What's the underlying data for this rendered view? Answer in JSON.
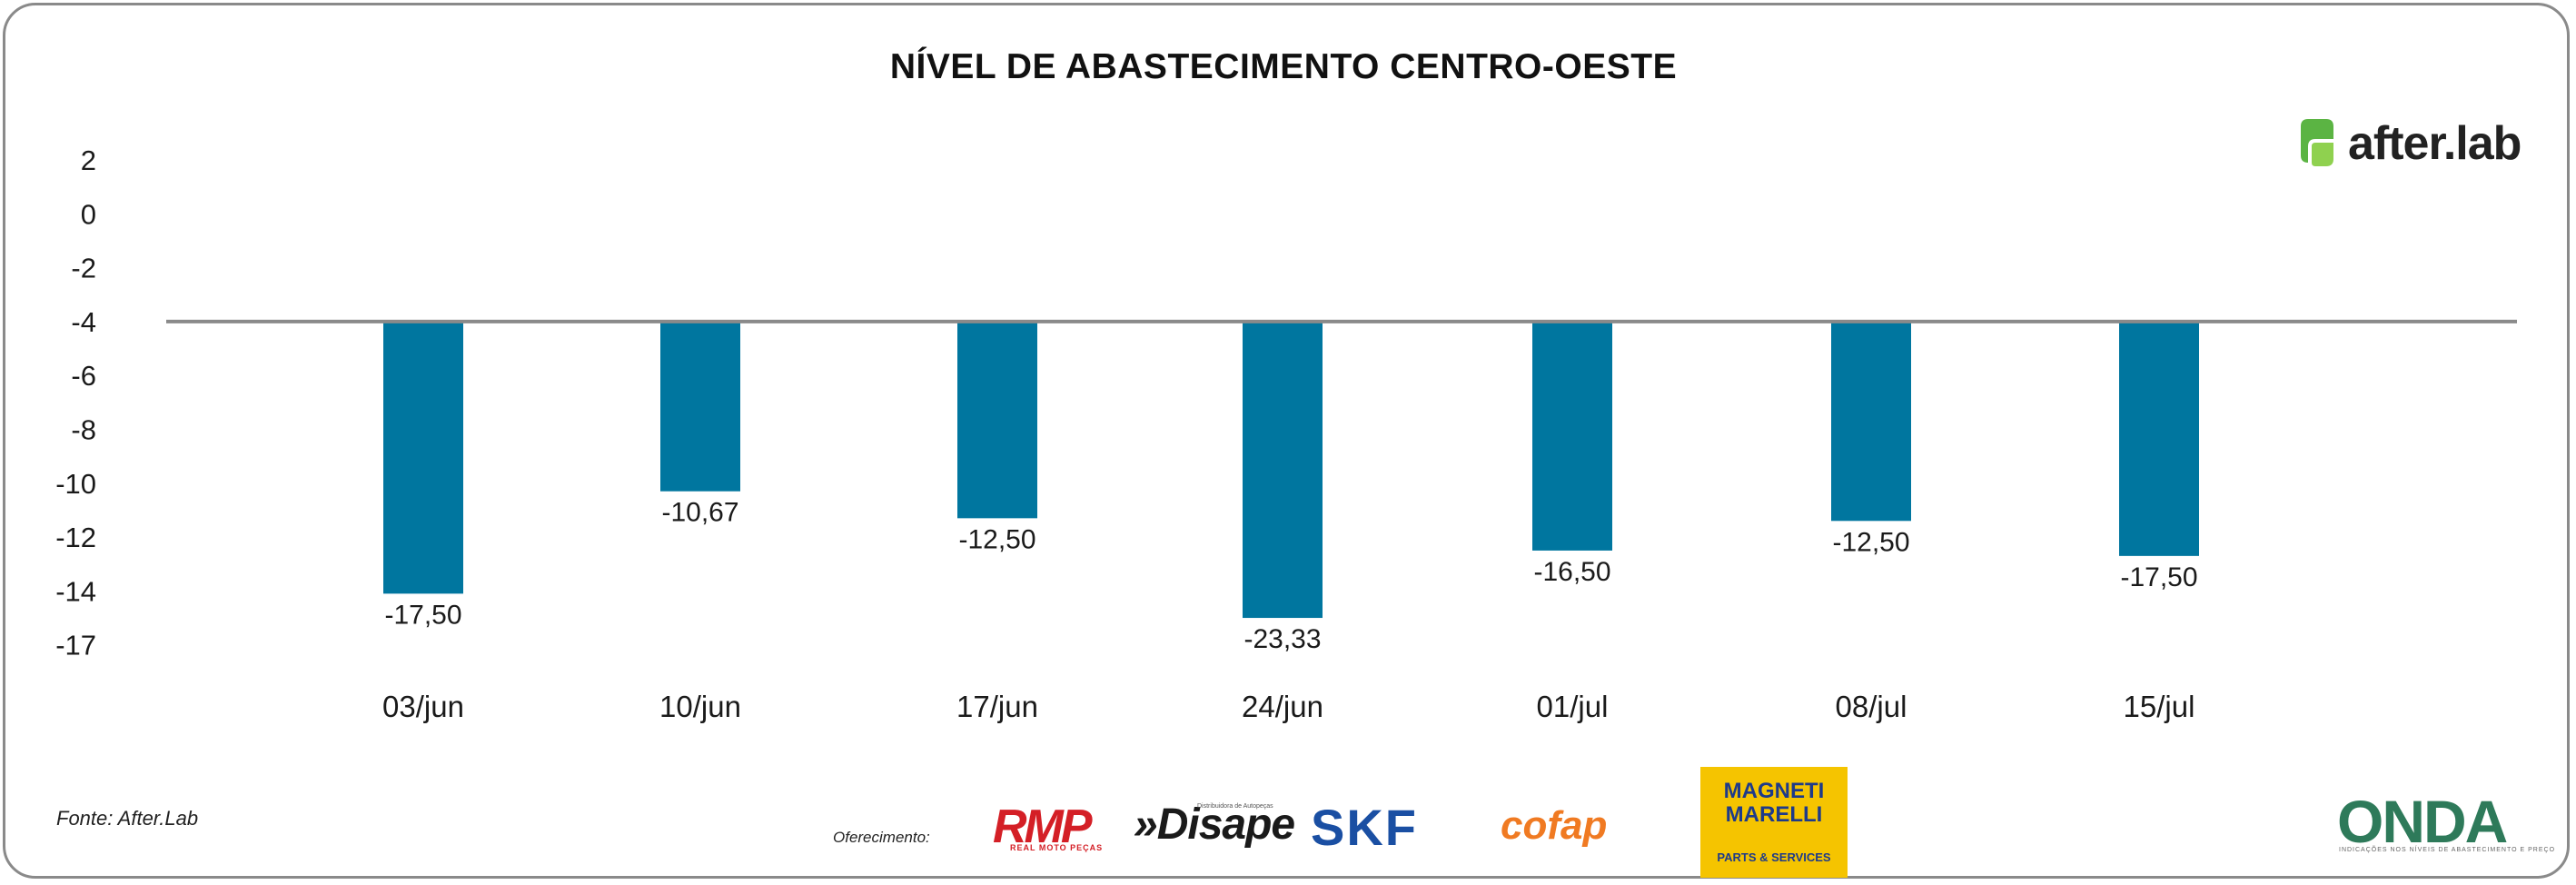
{
  "title": "NÍVEL DE ABASTECIMENTO CENTRO-OESTE",
  "brand": {
    "name": "after.lab",
    "logo_icon": "afterlab-logo-icon",
    "logo_color": "#5bb443"
  },
  "source": "Fonte: After.Lab",
  "sponsors": {
    "label": "Oferecimento:",
    "items": [
      {
        "name": "RMP",
        "subtitle": "REAL MOTO PEÇAS",
        "color": "#d41f26"
      },
      {
        "name": "»Disape",
        "subtitle": "Distribuidora de Autopeças",
        "color": "#1a1a1a"
      },
      {
        "name": "SKF",
        "color": "#1a4fa3"
      },
      {
        "name": "cofap",
        "color": "#f07a22"
      },
      {
        "name": "MAGNETI MARELLI",
        "subtitle": "PARTS & SERVICES",
        "color": "#f5c400"
      }
    ]
  },
  "partner": {
    "name": "ONDA",
    "subtitle": "INDICAÇÕES NOS NÍVEIS DE ABASTECIMENTO E PREÇO"
  },
  "chart_data": {
    "type": "bar",
    "title": "NÍVEL DE ABASTECIMENTO CENTRO-OESTE",
    "categories": [
      "03/jun",
      "10/jun",
      "17/jun",
      "24/jun",
      "01/jul",
      "08/jul",
      "15/jul"
    ],
    "values": [
      -17.5,
      -10.67,
      -12.5,
      -23.33,
      -16.5,
      -12.5,
      -17.5
    ],
    "value_labels": [
      "-17,50",
      "-10,67",
      "-12,50",
      "-23,33",
      "-16,50",
      "-12,50",
      "-17,50"
    ],
    "y_tick_labels": [
      "2",
      "0",
      "-2",
      "-4",
      "-6",
      "-8",
      "-10",
      "-12",
      "-14",
      "-17"
    ],
    "bar_ends": [
      -14.1,
      -10.3,
      -11.3,
      -15.0,
      -12.5,
      -11.4,
      -12.7
    ],
    "baseline": -4,
    "ylim": [
      -17,
      2
    ],
    "bar_color": "#00769f",
    "baseline_color": "#8a8a8a",
    "grid": false,
    "legend": "none"
  }
}
